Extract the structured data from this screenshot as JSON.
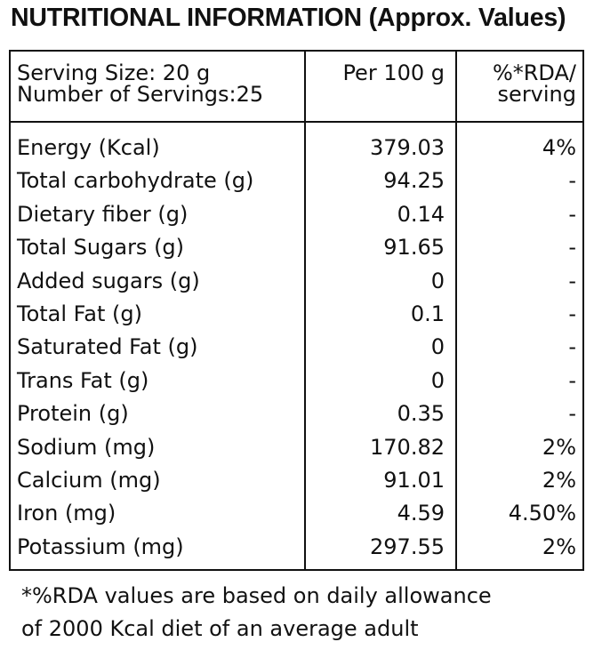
{
  "title": "NUTRITIONAL INFORMATION (Approx. Values)",
  "header": {
    "serving_size": "Serving Size: 20 g",
    "servings": "Number of Servings:25",
    "per_100g": "Per 100 g",
    "rda_line1": "%*RDA/",
    "rda_line2": "serving"
  },
  "rows": [
    {
      "name": "Energy (Kcal)",
      "per100": "379.03",
      "rda": "4%"
    },
    {
      "name": "Total carbohydrate (g)",
      "per100": "94.25",
      "rda": "-"
    },
    {
      "name": "Dietary fiber (g)",
      "per100": "0.14",
      "rda": "-"
    },
    {
      "name": "Total Sugars (g)",
      "per100": "91.65",
      "rda": "-"
    },
    {
      "name": "Added sugars (g)",
      "per100": "0",
      "rda": "-"
    },
    {
      "name": "Total Fat (g)",
      "per100": "0.1",
      "rda": "-"
    },
    {
      "name": "Saturated Fat (g)",
      "per100": "0",
      "rda": "-"
    },
    {
      "name": "Trans Fat (g)",
      "per100": "0",
      "rda": "-"
    },
    {
      "name": "Protein (g)",
      "per100": "0.35",
      "rda": "-"
    },
    {
      "name": "Sodium (mg)",
      "per100": "170.82",
      "rda": "2%"
    },
    {
      "name": "Calcium (mg)",
      "per100": "91.01",
      "rda": "2%"
    },
    {
      "name": "Iron (mg)",
      "per100": "4.59",
      "rda": "4.50%"
    },
    {
      "name": "Potassium (mg)",
      "per100": "297.55",
      "rda": "2%"
    }
  ],
  "footnote": {
    "line1": "*%RDA values are based on daily allowance",
    "line2": "of 2000 Kcal diet of an average adult"
  }
}
